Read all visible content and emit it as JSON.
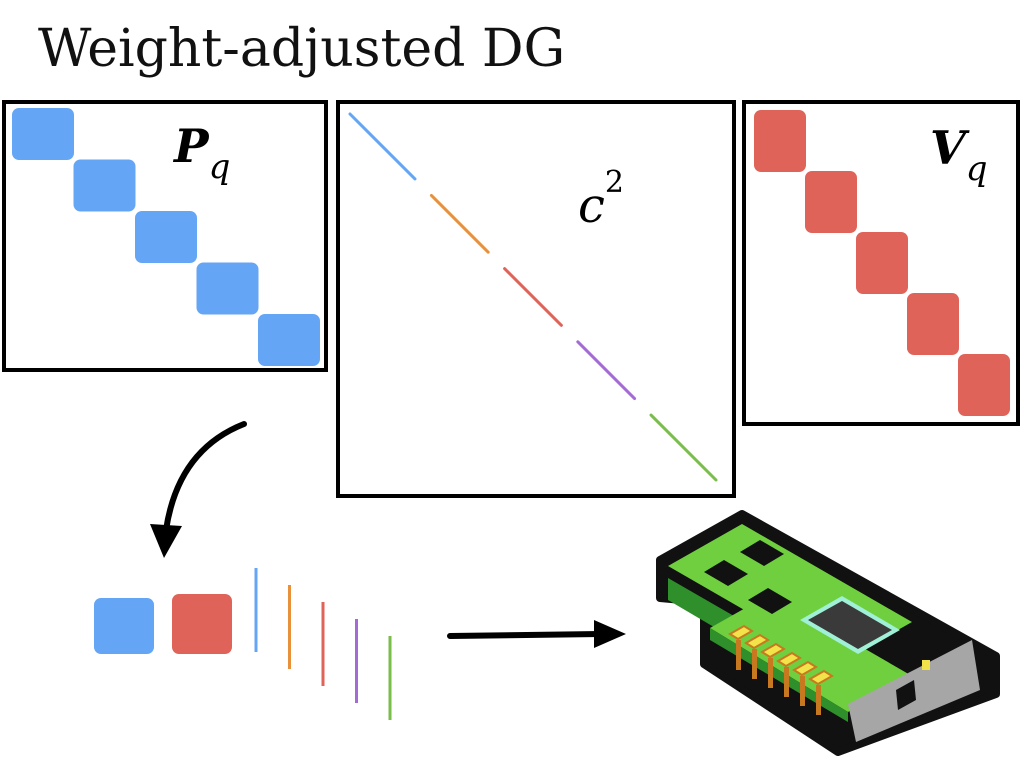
{
  "title": "Weight-adjusted DG",
  "colors": {
    "blue": "#64a6f5",
    "red": "#e0635a",
    "orange": "#e8913a",
    "purple": "#a46ad6",
    "green": "#79bd4a",
    "card_green": "#6fcf3e",
    "card_dark": "#2f8f2a",
    "chip": "#3a3a3a",
    "pin": "#9ff0d6",
    "contact": "#f2e34a",
    "bracket": "#a6a6a6"
  },
  "matrices": {
    "left": {
      "symbol": "P",
      "subscript": "q",
      "blocks": 5,
      "color_key": "blue"
    },
    "middle": {
      "symbol": "c",
      "superscript": "2",
      "segments": [
        "blue",
        "orange",
        "red",
        "purple",
        "green"
      ]
    },
    "right": {
      "symbol": "V",
      "subscript": "q",
      "blocks": 5,
      "color_key": "red"
    }
  },
  "flow": {
    "packed_blocks": [
      "blue",
      "red"
    ],
    "lines": [
      "blue",
      "orange",
      "red",
      "purple",
      "green"
    ]
  },
  "device": {
    "icon": "gpu-card-icon"
  }
}
